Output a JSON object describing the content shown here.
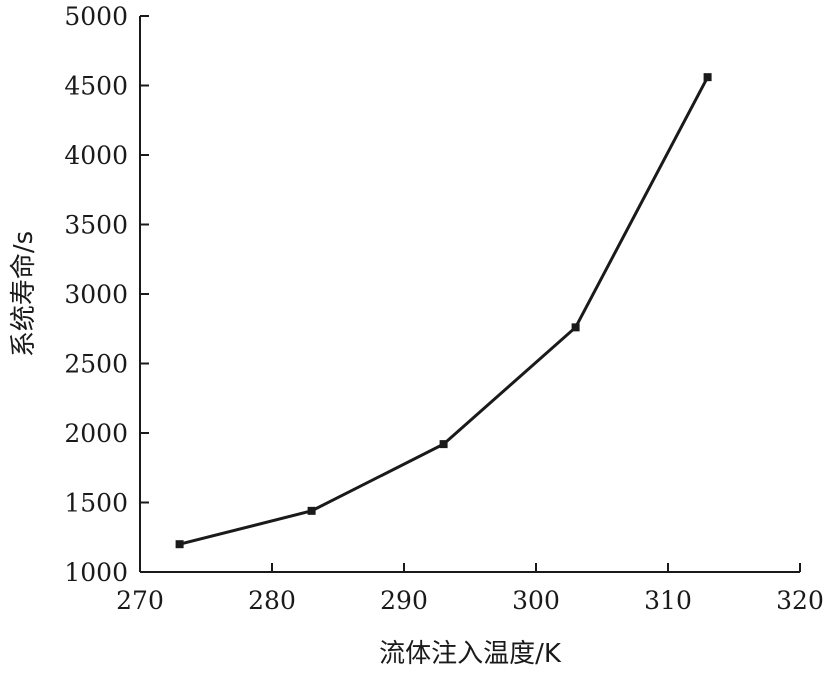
{
  "chart_data": {
    "type": "line",
    "title": "",
    "xlabel": "流体注入温度/K",
    "ylabel": "系统寿命/s",
    "xlim": [
      270,
      320
    ],
    "ylim": [
      1000,
      5000
    ],
    "xticks": [
      270,
      280,
      290,
      300,
      310,
      320
    ],
    "yticks": [
      1000,
      1500,
      2000,
      2500,
      3000,
      3500,
      4000,
      4500,
      5000
    ],
    "grid": false,
    "legend": "none",
    "series": [
      {
        "x": [
          273,
          283,
          293,
          303,
          313
        ],
        "y": [
          1200,
          1440,
          1920,
          2760,
          4560
        ],
        "marker": "square",
        "color": "#1a1a1a"
      }
    ]
  }
}
